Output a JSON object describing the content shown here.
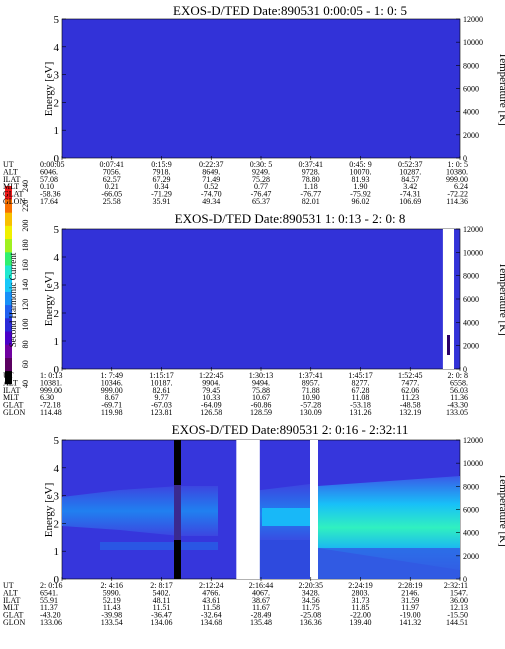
{
  "chart_data": [
    {
      "type": "heatmap",
      "title": "EXOS-D/TED   Date:890531  0:00:05 - 1: 0: 5",
      "ylabel": "Energy [eV]",
      "ylabel_right": "Temperature [K]",
      "ylim": [
        0,
        5
      ],
      "y_ticks": [
        0,
        1,
        2,
        3,
        4,
        5
      ],
      "y2lim": [
        0,
        12000
      ],
      "y2_ticks": [
        0,
        2000,
        4000,
        6000,
        8000,
        10000,
        12000
      ],
      "background": "#3232d8",
      "row_labels": [
        "UT",
        "ALT",
        "ILAT",
        "MLT",
        "GLAT",
        "GLON"
      ],
      "columns": [
        [
          "0:00:05",
          "6046.",
          "57.08",
          "0.10",
          "-58.36",
          "17.64"
        ],
        [
          "0:07:41",
          "7056.",
          "62.57",
          "0.21",
          "-66.05",
          "25.58"
        ],
        [
          "0:15:9",
          "7918.",
          "67.29",
          "0.34",
          "-71.29",
          "35.91"
        ],
        [
          "0:22:37",
          "8649.",
          "71.49",
          "0.52",
          "-74.70",
          "49.34"
        ],
        [
          "0:30: 5",
          "9249.",
          "75.28",
          "0.77",
          "-76.47",
          "65.37"
        ],
        [
          "0:37:41",
          "9728.",
          "78.80",
          "1.18",
          "-76.77",
          "82.01"
        ],
        [
          "0:45: 9",
          "10070.",
          "81.93",
          "1.90",
          "-75.92",
          "96.02"
        ],
        [
          "0:52:37",
          "10287.",
          "84.57",
          "3.42",
          "-74.31",
          "106.69"
        ],
        [
          "1: 0: 5",
          "10380.",
          "999.00",
          "6.24",
          "-72.22",
          "114.36"
        ]
      ]
    },
    {
      "type": "heatmap",
      "title": "EXOS-D/TED   Date:890531  1: 0:13 - 2: 0: 8",
      "ylabel": "Energy [eV]",
      "ylabel_right": "Temperature [K]",
      "ylim": [
        0,
        5
      ],
      "y_ticks": [
        0,
        1,
        2,
        3,
        4,
        5
      ],
      "y2lim": [
        0,
        12000
      ],
      "y2_ticks": [
        0,
        2000,
        4000,
        6000,
        8000,
        10000,
        12000
      ],
      "background": "#3232d8",
      "data_gap_fraction": [
        0.957,
        0.985
      ],
      "row_labels": [
        "UT",
        "ALT",
        "ILAT",
        "MLT",
        "GLAT",
        "GLON"
      ],
      "columns": [
        [
          "1: 0:13",
          "10381.",
          "999.00",
          "6.30",
          "-72.18",
          "114.48"
        ],
        [
          "1: 7:49",
          "10346.",
          "999.00",
          "8.67",
          "-69.71",
          "119.98"
        ],
        [
          "1:15:17",
          "10187.",
          "82.61",
          "9.77",
          "-67.03",
          "123.81"
        ],
        [
          "1:22:45",
          "9904.",
          "79.45",
          "10.33",
          "-64.09",
          "126.58"
        ],
        [
          "1:30:13",
          "9494.",
          "75.88",
          "10.67",
          "-60.86",
          "128.59"
        ],
        [
          "1:37:41",
          "8957.",
          "71.88",
          "10.90",
          "-57.28",
          "130.09"
        ],
        [
          "1:45:17",
          "8277.",
          "67.28",
          "11.08",
          "-53.18",
          "131.26"
        ],
        [
          "1:52:45",
          "7477.",
          "62.06",
          "11.23",
          "-48.58",
          "132.19"
        ],
        [
          "2: 0: 8",
          "6558.",
          "56.03",
          "11.36",
          "-43.30",
          "133.05"
        ]
      ]
    },
    {
      "type": "heatmap",
      "title": "EXOS-D/TED   Date:890531  2: 0:16 - 2:32:11",
      "ylabel": "Energy [eV]",
      "ylabel_right": "Temperature [K]",
      "ylim": [
        0,
        5
      ],
      "y_ticks": [
        0,
        1,
        2,
        3,
        4,
        5
      ],
      "y2lim": [
        0,
        12000
      ],
      "y2_ticks": [
        0,
        2000,
        4000,
        6000,
        8000,
        10000,
        12000
      ],
      "background": "#3636dc",
      "data_gap_fraction": [
        0.438,
        0.497
      ],
      "row_labels": [
        "UT",
        "ALT",
        "ILAT",
        "MLT",
        "GLAT",
        "GLON"
      ],
      "columns": [
        [
          "2: 0:16",
          "6541.",
          "55.91",
          "11.37",
          "-43.20",
          "133.06"
        ],
        [
          "2: 4:16",
          "5990.",
          "52.19",
          "11.43",
          "-39.98",
          "133.54"
        ],
        [
          "2: 8:17",
          "5402.",
          "48.11",
          "11.51",
          "-36.47",
          "134.06"
        ],
        [
          "2:12:24",
          "4766.",
          "43.61",
          "11.58",
          "-32.64",
          "134.68"
        ],
        [
          "2:16:44",
          "4067.",
          "38.67",
          "11.67",
          "-28.49",
          "135.48"
        ],
        [
          "2:20:35",
          "3428.",
          "34.56",
          "11.75",
          "-25.08",
          "136.36"
        ],
        [
          "2:24:19",
          "2803.",
          "31.73",
          "11.85",
          "-22.00",
          "139.40"
        ],
        [
          "2:28:19",
          "2146.",
          "31.59",
          "11.97",
          "-19.00",
          "141.32"
        ],
        [
          "2:32:11",
          "1547.",
          "36.00",
          "12.13",
          "-15.50",
          "144.51"
        ]
      ]
    }
  ],
  "colorbar": {
    "label": "Second Harmonic Current",
    "ticks": [
      "40",
      "60",
      "80",
      "100",
      "120",
      "140",
      "160",
      "180",
      "200",
      "220",
      "240"
    ],
    "colors": [
      "#000000",
      "#5a0060",
      "#7000a0",
      "#4a00c8",
      "#2a2ad8",
      "#2060f0",
      "#1890f8",
      "#18c8f8",
      "#20e8d0",
      "#30f070",
      "#a0f020",
      "#f0f000",
      "#f8c000",
      "#f87000",
      "#f01818"
    ]
  }
}
